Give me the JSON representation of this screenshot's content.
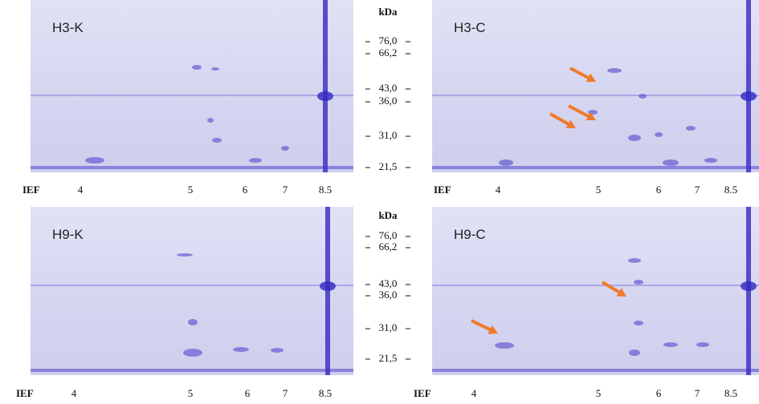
{
  "panels": [
    {
      "label": "H3-K"
    },
    {
      "label": "H3-C"
    },
    {
      "label": "H9-K"
    },
    {
      "label": "H9-C"
    }
  ],
  "markers": [
    {
      "unit": "kDa",
      "labels": [
        "76,0",
        "66,2",
        "43,0",
        "36,0",
        "31,0",
        "21,5"
      ]
    },
    {
      "unit": "kDa",
      "labels": [
        "76,0",
        "66,2",
        "43,0",
        "36,0",
        "31,0",
        "21,5"
      ]
    }
  ],
  "ief_rows": [
    {
      "title": "IEF",
      "labels": [
        "4",
        "5",
        "6",
        "7",
        "8.5"
      ]
    },
    {
      "title": "IEF",
      "labels": [
        "4",
        "5",
        "6",
        "7",
        "8.5"
      ]
    },
    {
      "title": "IEF",
      "labels": [
        "4",
        "5",
        "6",
        "7",
        "8.5"
      ]
    },
    {
      "title": "IEF",
      "labels": [
        "4",
        "5",
        "6",
        "7",
        "8.5"
      ]
    }
  ]
}
